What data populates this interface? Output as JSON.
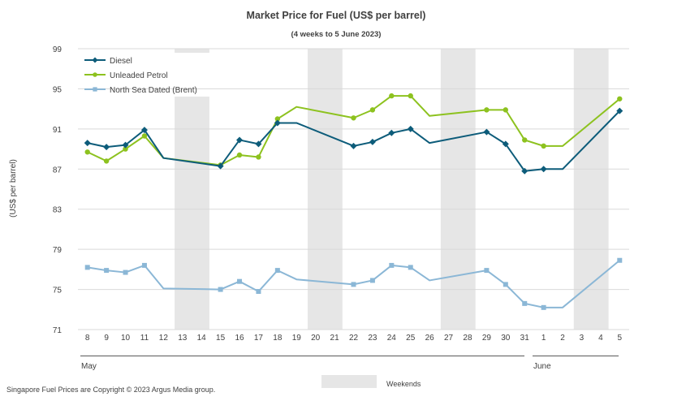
{
  "chart_data": {
    "type": "line",
    "title": "Market Price for Fuel (US$ per barrel)",
    "subtitle": "(4 weeks to 5 June 2023)",
    "ylabel": "(US$ per barrel)",
    "xlabel": "",
    "ylim": [
      71,
      99
    ],
    "yticks": [
      "71",
      "75",
      "79",
      "83",
      "87",
      "91",
      "95",
      "99"
    ],
    "categories": [
      "8",
      "9",
      "10",
      "11",
      "12",
      "13",
      "14",
      "15",
      "16",
      "17",
      "18",
      "19",
      "20",
      "21",
      "22",
      "23",
      "24",
      "25",
      "26",
      "27",
      "28",
      "29",
      "30",
      "31",
      "1",
      "2",
      "3",
      "4",
      "5"
    ],
    "month_labels": [
      "May",
      "June"
    ],
    "weekends": [
      [
        5,
        6
      ],
      [
        12,
        13
      ],
      [
        19,
        20
      ],
      [
        26,
        27
      ]
    ],
    "weekend_legend": "Weekends",
    "footer": "Singapore Fuel Prices are Copyright © 2023 Argus Media group.",
    "series": [
      {
        "name": "Diesel",
        "color": "#0d5c7a",
        "marker": "diamond",
        "values": [
          89.6,
          89.2,
          89.4,
          90.9,
          88.1,
          null,
          null,
          87.3,
          89.9,
          89.5,
          91.6,
          91.6,
          null,
          null,
          89.3,
          89.7,
          90.6,
          91.0,
          89.6,
          null,
          null,
          90.7,
          89.5,
          86.8,
          87.0,
          87.0,
          null,
          null,
          92.8
        ]
      },
      {
        "name": "Unleaded Petrol",
        "color": "#8dc21f",
        "marker": "circle",
        "values": [
          88.7,
          87.8,
          89.0,
          90.3,
          88.1,
          null,
          null,
          87.4,
          88.4,
          88.2,
          92.0,
          93.2,
          null,
          null,
          92.1,
          92.9,
          94.3,
          94.3,
          92.3,
          null,
          null,
          92.9,
          92.9,
          89.9,
          89.3,
          89.3,
          null,
          null,
          94.0
        ]
      },
      {
        "name": "North Sea Dated (Brent)",
        "color": "#8bb7d6",
        "marker": "square",
        "values": [
          77.2,
          76.9,
          76.7,
          77.4,
          75.1,
          null,
          null,
          75.0,
          75.8,
          74.8,
          76.9,
          76.0,
          null,
          null,
          75.5,
          75.9,
          77.4,
          77.2,
          75.9,
          null,
          null,
          76.9,
          75.5,
          73.6,
          73.2,
          73.2,
          null,
          null,
          77.9
        ]
      }
    ]
  }
}
